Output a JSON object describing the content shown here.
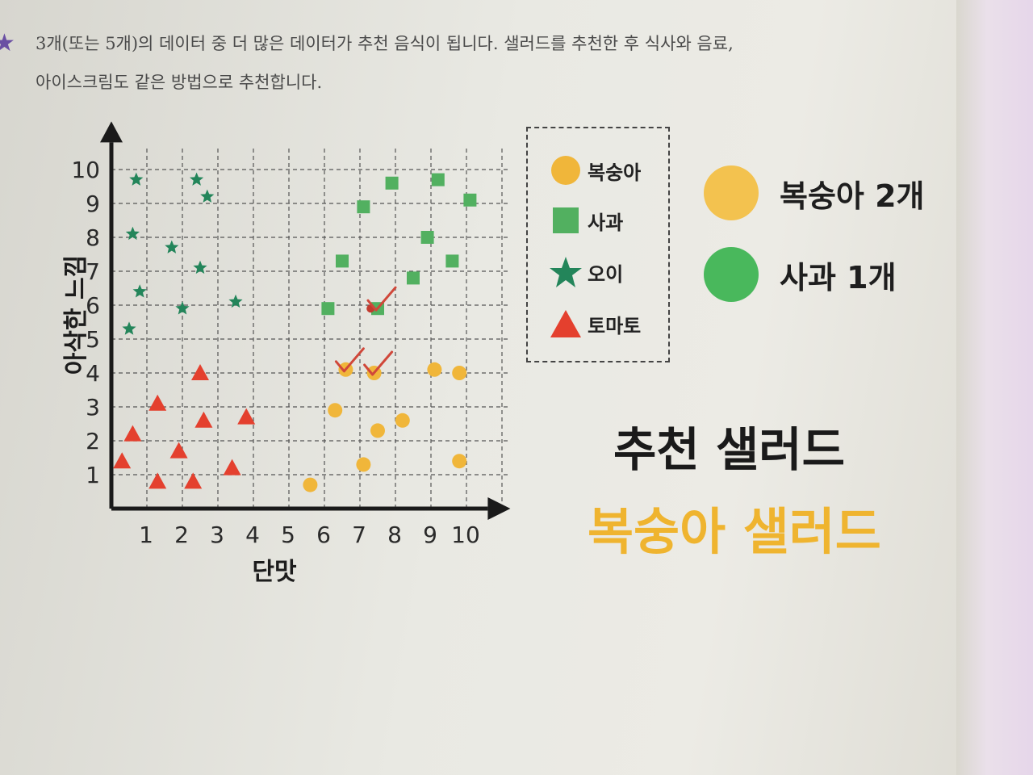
{
  "header": {
    "line1": "3개(또는 5개)의 데이터 중 더 많은 데이터가 추천 음식이 됩니다. 샐러드를 추천한 후 식사와 음료,",
    "line2": "아이스크림도 같은 방법으로 추천합니다."
  },
  "legend": {
    "items": [
      {
        "label": "복숭아",
        "shape": "circle",
        "color": "#f0b63a"
      },
      {
        "label": "사과",
        "shape": "square",
        "color": "#52b060"
      },
      {
        "label": "오이",
        "shape": "star",
        "color": "#23855a"
      },
      {
        "label": "토마토",
        "shape": "triangle",
        "color": "#e4402e"
      }
    ]
  },
  "counts": [
    {
      "label": "복숭아 2개",
      "color": "#f3c24f"
    },
    {
      "label": "사과 1개",
      "color": "#49b85c"
    }
  ],
  "recommendation": {
    "title": "추천 샐러드",
    "result": "복숭아 샐러드"
  },
  "chart_data": {
    "type": "scatter",
    "xlabel": "단맛",
    "ylabel": "아삭한 느낌",
    "xlim": [
      0,
      10
    ],
    "ylim": [
      0,
      10
    ],
    "x_ticks": [
      "1",
      "2",
      "3",
      "4",
      "5",
      "6",
      "7",
      "8",
      "9",
      "10"
    ],
    "y_ticks": [
      "1",
      "2",
      "3",
      "4",
      "5",
      "6",
      "7",
      "8",
      "9",
      "10"
    ],
    "grid": true,
    "series": [
      {
        "name": "복숭아",
        "shape": "circle",
        "color": "#f0b63a",
        "points": [
          [
            5.6,
            0.7
          ],
          [
            6.3,
            2.9
          ],
          [
            6.6,
            4.1
          ],
          [
            7.1,
            1.3
          ],
          [
            7.4,
            4.0
          ],
          [
            7.5,
            2.3
          ],
          [
            8.2,
            2.6
          ],
          [
            9.1,
            4.1
          ],
          [
            9.8,
            4.0
          ],
          [
            9.8,
            1.4
          ]
        ]
      },
      {
        "name": "사과",
        "shape": "square",
        "color": "#52b060",
        "points": [
          [
            6.1,
            5.9
          ],
          [
            6.5,
            7.3
          ],
          [
            7.1,
            8.9
          ],
          [
            7.5,
            5.9
          ],
          [
            7.9,
            9.6
          ],
          [
            8.5,
            6.8
          ],
          [
            8.9,
            8.0
          ],
          [
            9.2,
            9.7
          ],
          [
            9.6,
            7.3
          ],
          [
            10.1,
            9.1
          ]
        ]
      },
      {
        "name": "오이",
        "shape": "star",
        "color": "#23855a",
        "points": [
          [
            0.5,
            5.3
          ],
          [
            0.6,
            8.1
          ],
          [
            0.7,
            9.7
          ],
          [
            0.8,
            6.4
          ],
          [
            1.7,
            7.7
          ],
          [
            2.0,
            5.9
          ],
          [
            2.4,
            9.7
          ],
          [
            2.5,
            7.1
          ],
          [
            2.7,
            9.2
          ],
          [
            3.5,
            6.1
          ]
        ]
      },
      {
        "name": "토마토",
        "shape": "triangle",
        "color": "#e4402e",
        "points": [
          [
            0.3,
            1.4
          ],
          [
            0.6,
            2.2
          ],
          [
            1.3,
            3.1
          ],
          [
            1.3,
            0.8
          ],
          [
            1.9,
            1.7
          ],
          [
            2.3,
            0.8
          ],
          [
            2.5,
            4.0
          ],
          [
            2.6,
            2.6
          ],
          [
            3.4,
            1.2
          ],
          [
            3.8,
            2.7
          ]
        ]
      }
    ],
    "new_point": {
      "x": 7.3,
      "y": 5.9
    },
    "nearest_marked": [
      [
        6.6,
        4.1
      ],
      [
        7.4,
        4.0
      ],
      [
        7.5,
        5.9
      ]
    ]
  }
}
